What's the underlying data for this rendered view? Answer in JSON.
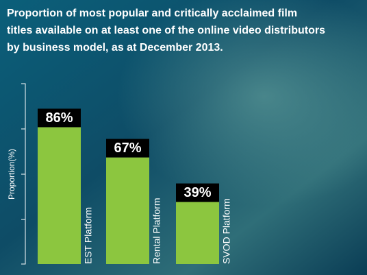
{
  "chart_data": {
    "type": "bar",
    "title": [
      "Proportion of most popular and critically acclaimed film",
      "titles available on at least one of the online video distributors",
      "by business model, as at December 2013."
    ],
    "ylabel": "Proportion(%)",
    "categories": [
      "EST Platform",
      "Rental Platform",
      "SVOD Platform"
    ],
    "values": [
      86,
      67,
      39
    ],
    "value_labels": [
      "86%",
      "67%",
      "39%"
    ],
    "color": "#8cc63f",
    "ylim": [
      0,
      100
    ]
  }
}
